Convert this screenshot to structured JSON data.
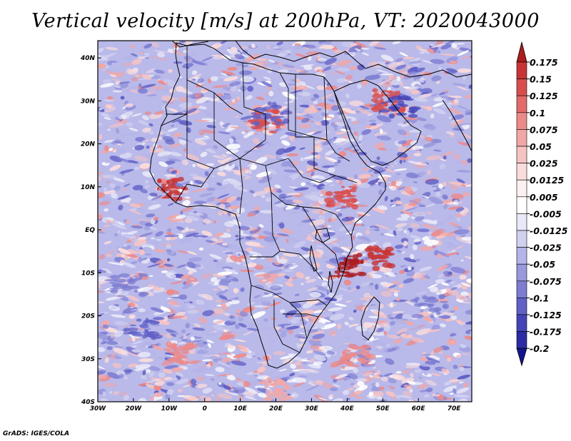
{
  "title": "Vertical velocity [m/s] at 200hPa, VT: 2020043000",
  "credit": "GrADS: IGES/COLA",
  "lon_ticks": [
    "30W",
    "20W",
    "10W",
    "0",
    "10E",
    "20E",
    "30E",
    "40E",
    "50E",
    "60E",
    "70E"
  ],
  "lat_ticks": [
    "40N",
    "30N",
    "20N",
    "10N",
    "EQ",
    "10S",
    "20S",
    "30S",
    "40S"
  ],
  "lon_range": [
    -30,
    75
  ],
  "lat_range": [
    -40,
    44
  ],
  "colorbar": {
    "labels": [
      "0.175",
      "0.15",
      "0.125",
      "0.1",
      "0.075",
      "0.05",
      "0.025",
      "0.0125",
      "0.005",
      "-0.005",
      "-0.0125",
      "-0.025",
      "-0.05",
      "-0.075",
      "-0.1",
      "-0.125",
      "-0.175",
      "-0.2"
    ],
    "colors": [
      "#ae1c1c",
      "#c83434",
      "#d84e4e",
      "#e36a6a",
      "#ec8a8a",
      "#f2a7a7",
      "#f6c3c3",
      "#fadcdc",
      "#fdf0f0",
      "#ffffff",
      "#e8e8f8",
      "#d0d0f0",
      "#b4b4e8",
      "#9898dd",
      "#7c7cd2",
      "#6060c6",
      "#4444b8",
      "#2b2ba6",
      "#14148e"
    ]
  },
  "colors": {
    "land_border": "#000000",
    "background": "#ffffff"
  }
}
